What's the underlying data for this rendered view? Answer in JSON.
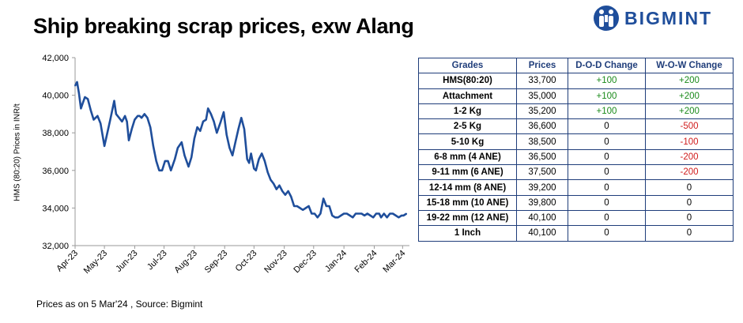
{
  "title": "Ship breaking scrap prices, exw Alang",
  "brand": {
    "name": "BIGMINT",
    "color": "#1f4e9b"
  },
  "footer": "Prices as on 5 Mar'24 , Source:  Bigmint",
  "table": {
    "headers": [
      "Grades",
      "Prices",
      "D-O-D Change",
      "W-O-W Change"
    ],
    "rows": [
      {
        "grade": "HMS(80:20)",
        "price": "33,700",
        "dod": "+100",
        "wow": "+200"
      },
      {
        "grade": "Attachment",
        "price": "35,000",
        "dod": "+100",
        "wow": "+200"
      },
      {
        "grade": "1-2 Kg",
        "price": "35,200",
        "dod": "+100",
        "wow": "+200"
      },
      {
        "grade": "2-5 Kg",
        "price": "36,600",
        "dod": "0",
        "wow": "-500"
      },
      {
        "grade": "5-10 Kg",
        "price": "38,500",
        "dod": "0",
        "wow": "-100"
      },
      {
        "grade": "6-8 mm (4 ANE)",
        "price": "36,500",
        "dod": "0",
        "wow": "-200"
      },
      {
        "grade": "9-11 mm (6 ANE)",
        "price": "37,500",
        "dod": "0",
        "wow": "-200"
      },
      {
        "grade": "12-14 mm (8 ANE)",
        "price": "39,200",
        "dod": "0",
        "wow": "0"
      },
      {
        "grade": "15-18 mm (10 ANE)",
        "price": "39,800",
        "dod": "0",
        "wow": "0"
      },
      {
        "grade": "19-22 mm (12 ANE)",
        "price": "40,100",
        "dod": "0",
        "wow": "0"
      },
      {
        "grade": "1 Inch",
        "price": "40,100",
        "dod": "0",
        "wow": "0"
      }
    ]
  },
  "chart_data": {
    "type": "line",
    "ylabel": "HMS (80:20) Prices in INR/t",
    "xlabel": "",
    "ylim": [
      32000,
      42000
    ],
    "y_ticks": [
      "32,000",
      "34,000",
      "36,000",
      "38,000",
      "40,000",
      "42,000"
    ],
    "x_ticks": [
      "Apr-23",
      "May-23",
      "Jun-23",
      "Jul-23",
      "Aug-23",
      "Sep-23",
      "Oct-23",
      "Nov-23",
      "Dec-23",
      "Jan-24",
      "Feb-24",
      "Mar-24"
    ],
    "line_color": "#1f4e9b",
    "grid": false,
    "series": [
      {
        "x": [
          "2023-04-01",
          "2023-04-03",
          "2023-04-05",
          "2023-04-07",
          "2023-04-09",
          "2023-04-11",
          "2023-04-14",
          "2023-04-17",
          "2023-04-20",
          "2023-04-24",
          "2023-04-27",
          "2023-05-01",
          "2023-05-04",
          "2023-05-07",
          "2023-05-09",
          "2023-05-11",
          "2023-05-13",
          "2023-05-16",
          "2023-05-19",
          "2023-05-22",
          "2023-05-24",
          "2023-05-26",
          "2023-05-29",
          "2023-06-01",
          "2023-06-04",
          "2023-06-06",
          "2023-06-08",
          "2023-06-11",
          "2023-06-14",
          "2023-06-17",
          "2023-06-20",
          "2023-06-23",
          "2023-06-26",
          "2023-06-29",
          "2023-07-02",
          "2023-07-05",
          "2023-07-08",
          "2023-07-10",
          "2023-07-12",
          "2023-07-15",
          "2023-07-19",
          "2023-07-22",
          "2023-07-26",
          "2023-07-29",
          "2023-08-01",
          "2023-08-04",
          "2023-08-07",
          "2023-08-10",
          "2023-08-13",
          "2023-08-15",
          "2023-08-18",
          "2023-08-21",
          "2023-08-24",
          "2023-08-28",
          "2023-08-31",
          "2023-09-03",
          "2023-09-06",
          "2023-09-09",
          "2023-09-12",
          "2023-09-15",
          "2023-09-18",
          "2023-09-21",
          "2023-09-24",
          "2023-09-26",
          "2023-09-28",
          "2023-10-01",
          "2023-10-03",
          "2023-10-06",
          "2023-10-09",
          "2023-10-12",
          "2023-10-15",
          "2023-10-18",
          "2023-10-21",
          "2023-10-24",
          "2023-10-27",
          "2023-10-30",
          "2023-11-02",
          "2023-11-05",
          "2023-11-08",
          "2023-11-11",
          "2023-11-14",
          "2023-11-17",
          "2023-11-20",
          "2023-11-23",
          "2023-11-26",
          "2023-11-29",
          "2023-12-02",
          "2023-12-05",
          "2023-12-08",
          "2023-12-11",
          "2023-12-14",
          "2023-12-17",
          "2023-12-20",
          "2023-12-23",
          "2023-12-26",
          "2023-12-29",
          "2024-01-01",
          "2024-01-04",
          "2024-01-07",
          "2024-01-10",
          "2024-01-13",
          "2024-01-16",
          "2024-01-19",
          "2024-01-22",
          "2024-01-25",
          "2024-01-28",
          "2024-01-31",
          "2024-02-03",
          "2024-02-06",
          "2024-02-08",
          "2024-02-11",
          "2024-02-14",
          "2024-02-17",
          "2024-02-20",
          "2024-02-23",
          "2024-02-26",
          "2024-02-29",
          "2024-03-02",
          "2024-03-05"
        ],
        "values": [
          40500,
          40700,
          40100,
          39300,
          39600,
          39900,
          39800,
          39200,
          38700,
          38900,
          38500,
          37300,
          38000,
          38700,
          39200,
          39700,
          39000,
          38800,
          38600,
          38900,
          38600,
          37600,
          38200,
          38700,
          38900,
          38900,
          38800,
          39000,
          38800,
          38300,
          37300,
          36500,
          36000,
          36000,
          36500,
          36500,
          36000,
          36300,
          36600,
          37200,
          37500,
          36800,
          36200,
          36700,
          37700,
          38300,
          38100,
          38600,
          38700,
          39300,
          39000,
          38600,
          38000,
          38600,
          39100,
          37900,
          37200,
          36800,
          37500,
          38200,
          38800,
          38200,
          36600,
          36400,
          36900,
          36100,
          36000,
          36600,
          36900,
          36500,
          35900,
          35500,
          35300,
          35000,
          35200,
          34900,
          34700,
          34900,
          34600,
          34100,
          34100,
          34000,
          33900,
          34000,
          34100,
          33700,
          33700,
          33500,
          33700,
          34500,
          34100,
          34100,
          33600,
          33500,
          33500,
          33600,
          33700,
          33700,
          33600,
          33500,
          33700,
          33700,
          33700,
          33600,
          33700,
          33600,
          33500,
          33700,
          33700,
          33500,
          33700,
          33500,
          33700,
          33700,
          33600,
          33500,
          33600,
          33600,
          33700
        ]
      }
    ]
  }
}
